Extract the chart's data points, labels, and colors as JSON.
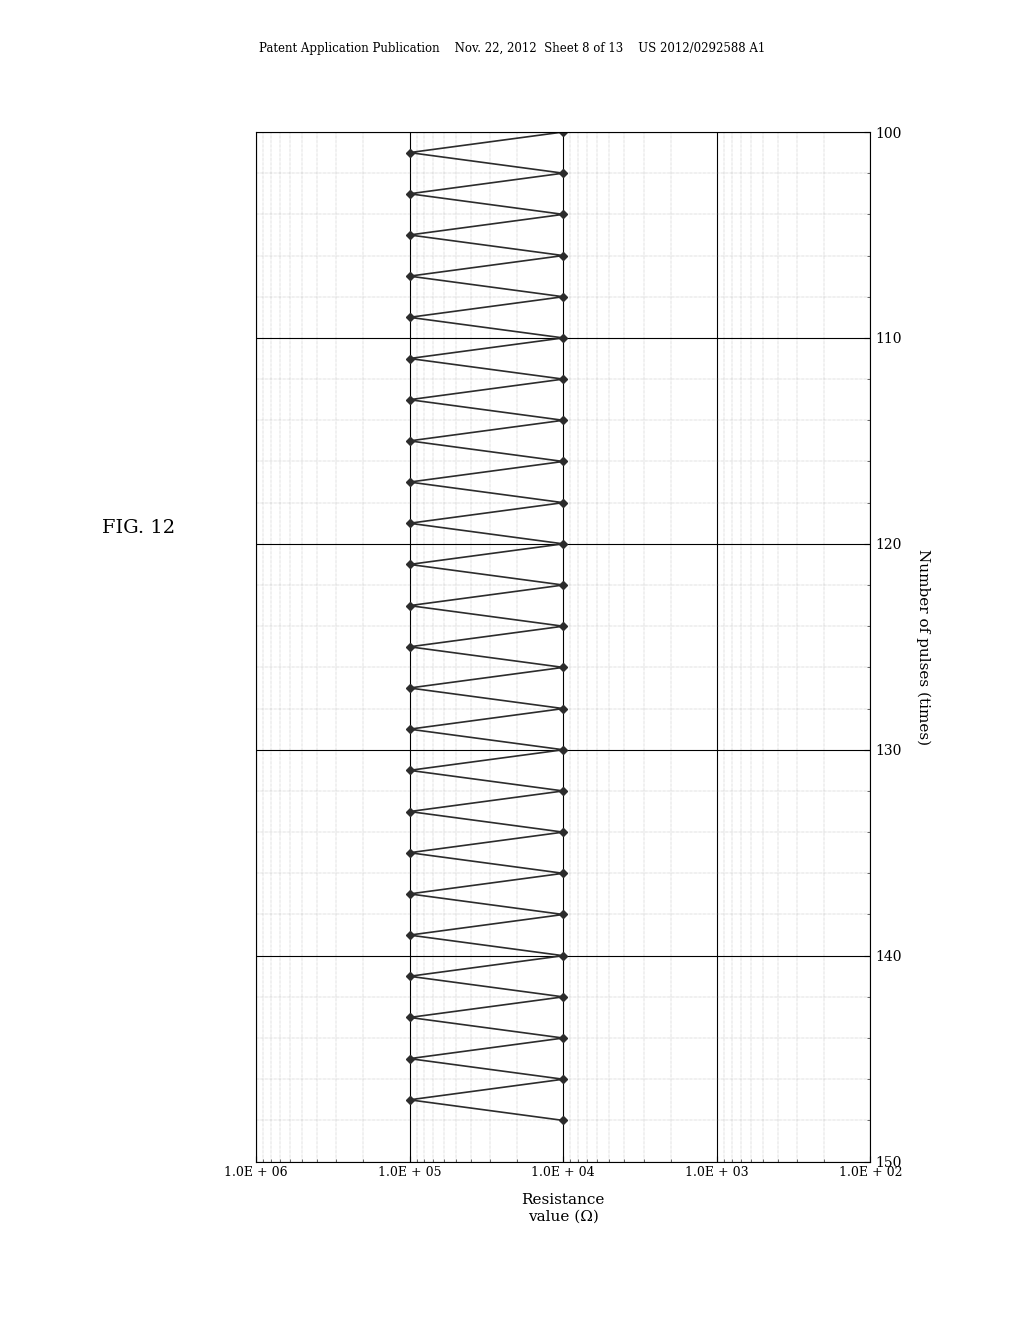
{
  "title": "FIG. 12",
  "xlabel": "Number of pulses (times)",
  "ylabel": "Resistance\nvalue (Ω)",
  "x_min": 100,
  "x_max": 150,
  "y_min_log": 2,
  "y_max_log": 6,
  "x_ticks": [
    100,
    110,
    120,
    130,
    140,
    150
  ],
  "y_tick_labels": [
    "1.0E + 06",
    "1.0E + 05",
    "1.0E + 04",
    "1.0E + 03",
    "1.0E + 02"
  ],
  "y_tick_values": [
    1000000,
    100000,
    10000,
    1000,
    100
  ],
  "data_x": [
    100,
    101,
    102,
    103,
    104,
    105,
    106,
    107,
    108,
    109,
    110,
    111,
    112,
    113,
    114,
    115,
    116,
    117,
    118,
    119,
    120,
    121,
    122,
    123,
    124,
    125,
    126,
    127,
    128,
    129,
    130,
    131,
    132,
    133,
    134,
    135,
    136,
    137,
    138,
    139,
    140,
    141,
    142,
    143,
    144,
    145,
    146,
    147,
    148
  ],
  "data_y": [
    10000,
    100000,
    10000,
    100000,
    10000,
    100000,
    10000,
    100000,
    10000,
    100000,
    10000,
    100000,
    10000,
    100000,
    10000,
    100000,
    10000,
    100000,
    10000,
    100000,
    10000,
    100000,
    10000,
    100000,
    10000,
    100000,
    10000,
    100000,
    10000,
    100000,
    10000,
    100000,
    10000,
    100000,
    10000,
    100000,
    10000,
    100000,
    10000,
    100000,
    10000,
    100000,
    10000,
    100000,
    10000,
    100000,
    10000,
    100000,
    10000
  ],
  "line_color": "#2c2c2c",
  "marker": "D",
  "marker_size": 4,
  "line_width": 1.2,
  "fig_width": 10.24,
  "fig_height": 13.2,
  "dpi": 100,
  "background_color": "#ffffff",
  "grid_major_color": "#000000",
  "grid_minor_color": "#888888",
  "header_text": "Patent Application Publication    Nov. 22, 2012  Sheet 8 of 13    US 2012/0292588 A1"
}
